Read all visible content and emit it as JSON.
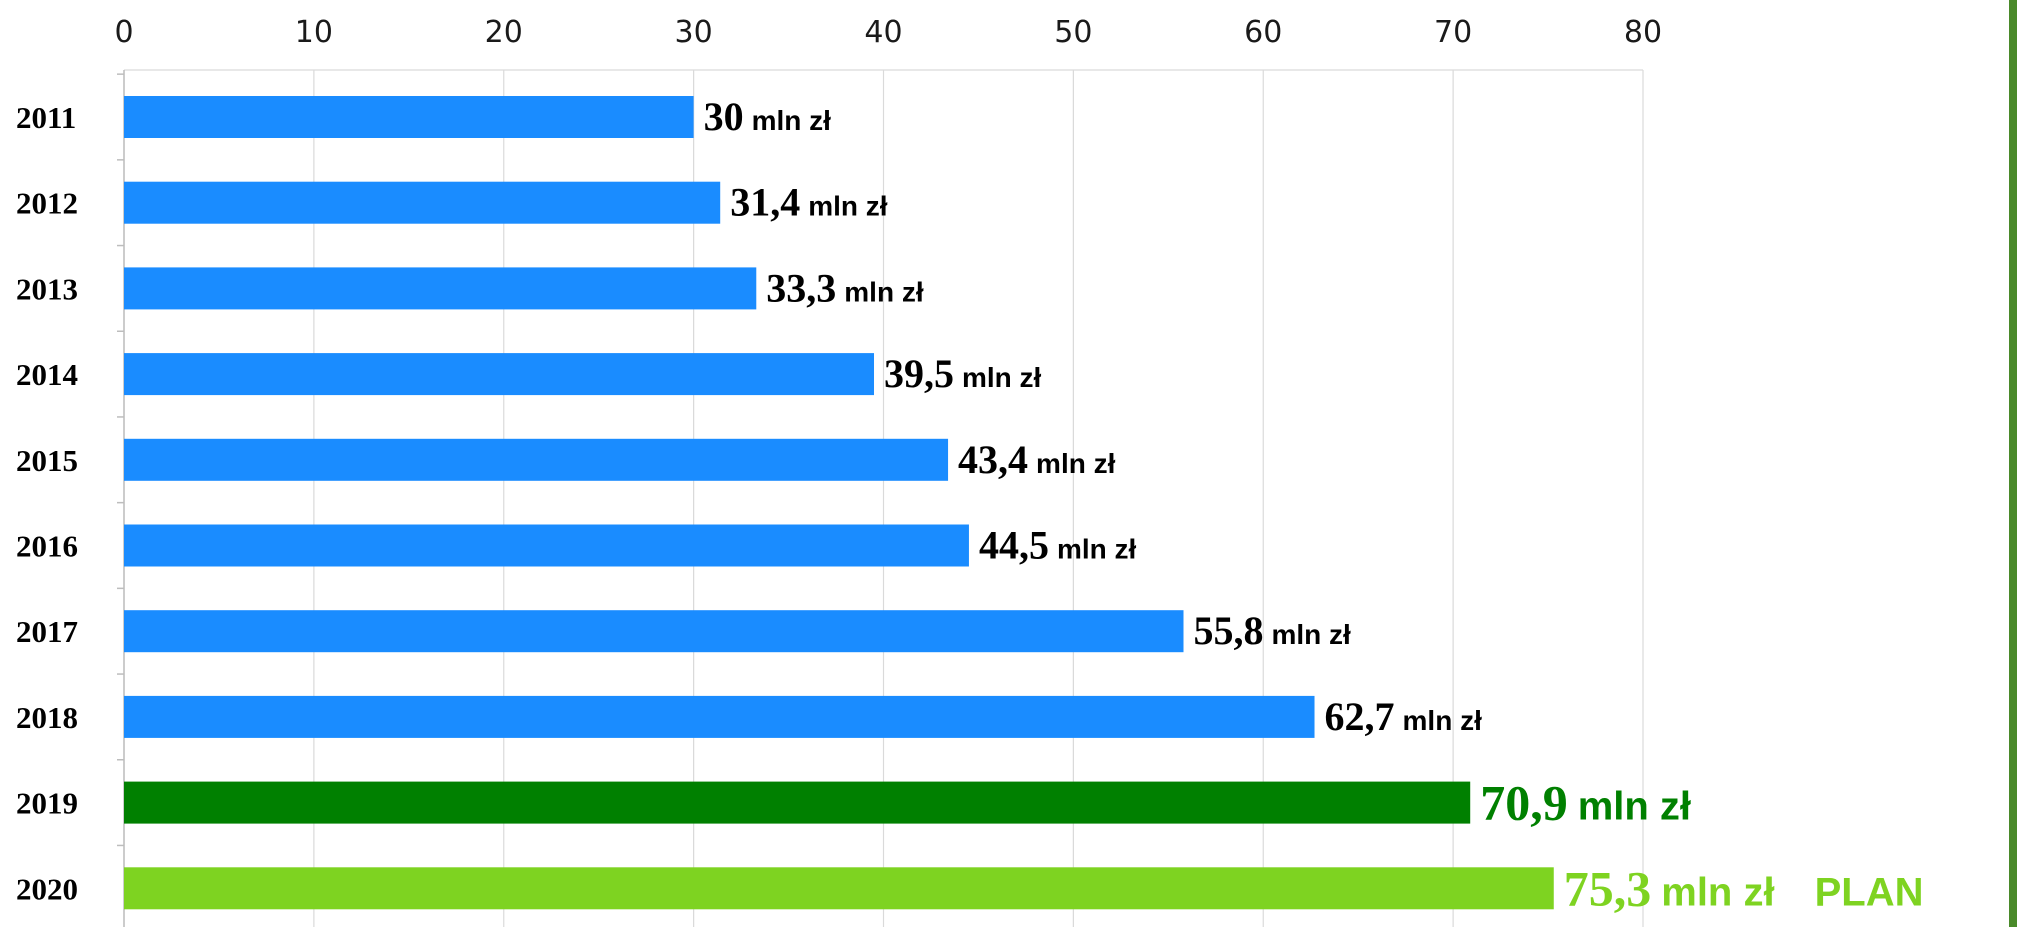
{
  "chart_data": {
    "type": "bar",
    "orientation": "horizontal",
    "categories": [
      "2011",
      "2012",
      "2013",
      "2014",
      "2015",
      "2016",
      "2017",
      "2018",
      "2019",
      "2020"
    ],
    "values": [
      30,
      31.4,
      33.3,
      39.5,
      43.4,
      44.5,
      55.8,
      62.7,
      70.9,
      75.3
    ],
    "value_labels": [
      "30",
      "31,4",
      "33,3",
      "39,5",
      "43,4",
      "44,5",
      "55,8",
      "62,7",
      "70,9",
      "75,3"
    ],
    "unit": "mln zł",
    "extra_label": {
      "category": "2020",
      "text": "PLAN"
    },
    "xaxis": {
      "ticks": [
        0,
        10,
        20,
        30,
        40,
        50,
        60,
        70,
        80
      ],
      "position": "top",
      "range": [
        0,
        80
      ]
    },
    "grid": true,
    "title": "",
    "xlabel": "",
    "ylabel": "",
    "colors": {
      "default": "#1a8cff",
      "2019": "#008000",
      "2020": "#7ed321",
      "grid": "#dadada",
      "text": "#000000",
      "frame": "#4a8a2a"
    }
  }
}
